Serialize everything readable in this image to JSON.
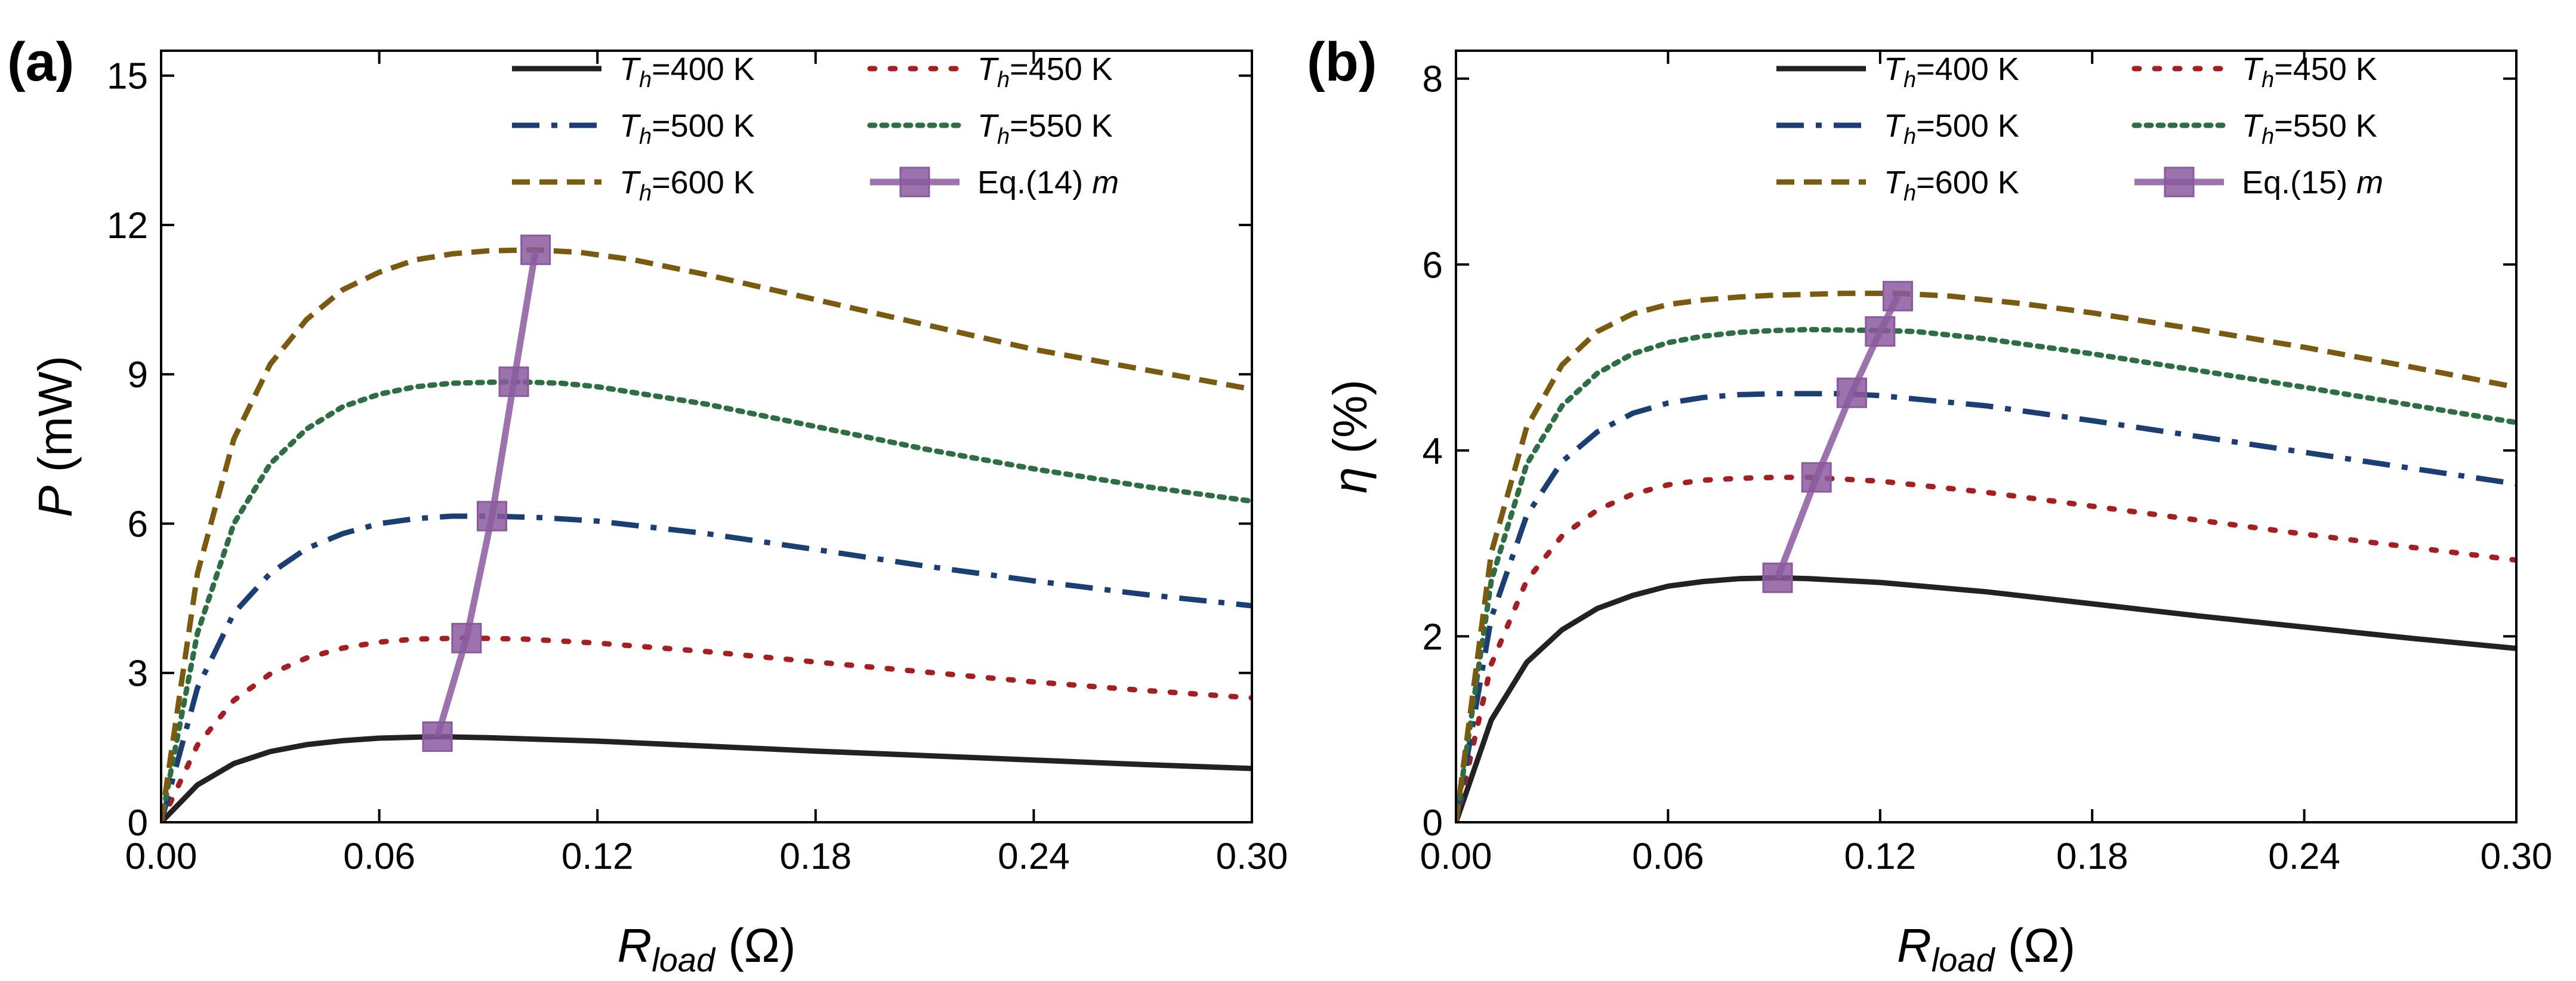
{
  "chart_data": [
    {
      "type": "line",
      "panel_label": "(a)",
      "xlabel": {
        "main": "R",
        "sub": "load",
        "unit": "(Ω)"
      },
      "ylabel": {
        "main": "P",
        "unit": "(mW)"
      },
      "xlim": [
        0,
        0.3
      ],
      "ylim": [
        0,
        15.5
      ],
      "xticks": [
        0,
        0.06,
        0.12,
        0.18,
        0.24,
        0.3
      ],
      "xtick_labels": [
        "0.00",
        "0.06",
        "0.12",
        "0.18",
        "0.24",
        "0.30"
      ],
      "yticks": [
        0,
        3,
        6,
        9,
        12,
        15
      ],
      "ytick_labels": [
        "0",
        "3",
        "6",
        "9",
        "12",
        "15"
      ],
      "legend_position": "top-right",
      "series": [
        {
          "name": "Th=400 K",
          "name_main": "T",
          "name_sub": "h",
          "name_rest": "=400 K",
          "style": "solid",
          "color": "#222222",
          "x": [
            0,
            0.01,
            0.02,
            0.03,
            0.04,
            0.05,
            0.06,
            0.07,
            0.076,
            0.09,
            0.12,
            0.15,
            0.18,
            0.21,
            0.24,
            0.27,
            0.3
          ],
          "y": [
            0,
            0.75,
            1.18,
            1.42,
            1.56,
            1.64,
            1.69,
            1.71,
            1.72,
            1.7,
            1.63,
            1.53,
            1.43,
            1.34,
            1.25,
            1.16,
            1.08
          ]
        },
        {
          "name": "Th=450 K",
          "name_main": "T",
          "name_sub": "h",
          "name_rest": "=450 K",
          "style": "dot",
          "color": "#a31f22",
          "x": [
            0,
            0.01,
            0.02,
            0.03,
            0.04,
            0.05,
            0.06,
            0.07,
            0.084,
            0.1,
            0.12,
            0.15,
            0.18,
            0.21,
            0.24,
            0.27,
            0.3
          ],
          "y": [
            0,
            1.55,
            2.45,
            2.98,
            3.3,
            3.5,
            3.62,
            3.68,
            3.7,
            3.68,
            3.6,
            3.43,
            3.22,
            3.02,
            2.82,
            2.65,
            2.5
          ]
        },
        {
          "name": "Th=500 K",
          "name_main": "T",
          "name_sub": "h",
          "name_rest": "=500 K",
          "style": "dashdot",
          "color": "#1c3f73",
          "x": [
            0,
            0.01,
            0.02,
            0.03,
            0.04,
            0.05,
            0.06,
            0.07,
            0.08,
            0.091,
            0.105,
            0.12,
            0.15,
            0.18,
            0.21,
            0.24,
            0.27,
            0.3
          ],
          "y": [
            0,
            2.7,
            4.2,
            5.0,
            5.5,
            5.8,
            6.0,
            6.1,
            6.15,
            6.15,
            6.12,
            6.05,
            5.8,
            5.48,
            5.15,
            4.85,
            4.58,
            4.35
          ]
        },
        {
          "name": "Th=550 K",
          "name_main": "T",
          "name_sub": "h",
          "name_rest": "=550 K",
          "style": "densedot",
          "color": "#2f6e45",
          "x": [
            0,
            0.01,
            0.02,
            0.03,
            0.04,
            0.05,
            0.06,
            0.07,
            0.08,
            0.097,
            0.11,
            0.12,
            0.15,
            0.18,
            0.21,
            0.24,
            0.27,
            0.3
          ],
          "y": [
            0,
            3.8,
            6.0,
            7.2,
            7.9,
            8.35,
            8.6,
            8.75,
            8.82,
            8.85,
            8.82,
            8.75,
            8.4,
            7.95,
            7.5,
            7.1,
            6.75,
            6.45
          ]
        },
        {
          "name": "Th=600 K",
          "name_main": "T",
          "name_sub": "h",
          "name_rest": "=600 K",
          "style": "dash",
          "color": "#7a5a10",
          "x": [
            0,
            0.01,
            0.02,
            0.03,
            0.04,
            0.05,
            0.06,
            0.07,
            0.08,
            0.09,
            0.103,
            0.115,
            0.13,
            0.15,
            0.18,
            0.21,
            0.24,
            0.27,
            0.3
          ],
          "y": [
            0,
            5.0,
            7.7,
            9.2,
            10.1,
            10.7,
            11.05,
            11.3,
            11.42,
            11.48,
            11.5,
            11.45,
            11.3,
            11.0,
            10.5,
            10.0,
            9.5,
            9.1,
            8.7
          ]
        },
        {
          "name": "Eq.(14) m",
          "name_main": "Eq.(14) ",
          "name_sub": "",
          "name_rest": "m",
          "style": "marker-line",
          "color": "#8b5a9e",
          "x": [
            0.076,
            0.084,
            0.091,
            0.097,
            0.103
          ],
          "y": [
            1.72,
            3.7,
            6.15,
            8.85,
            11.5
          ]
        }
      ]
    },
    {
      "type": "line",
      "panel_label": "(b)",
      "xlabel": {
        "main": "R",
        "sub": "load",
        "unit": "(Ω)"
      },
      "ylabel": {
        "main": "η",
        "unit": "(%)"
      },
      "xlim": [
        0,
        0.3
      ],
      "ylim": [
        0,
        8.3
      ],
      "xticks": [
        0,
        0.06,
        0.12,
        0.18,
        0.24,
        0.3
      ],
      "xtick_labels": [
        "0.00",
        "0.06",
        "0.12",
        "0.18",
        "0.24",
        "0.30"
      ],
      "yticks": [
        0,
        2,
        4,
        6,
        8
      ],
      "ytick_labels": [
        "0",
        "2",
        "4",
        "6",
        "8"
      ],
      "legend_position": "top-right",
      "series": [
        {
          "name": "Th=400 K",
          "name_main": "T",
          "name_sub": "h",
          "name_rest": "=400 K",
          "style": "solid",
          "color": "#222222",
          "x": [
            0,
            0.01,
            0.02,
            0.03,
            0.04,
            0.05,
            0.06,
            0.07,
            0.08,
            0.091,
            0.1,
            0.12,
            0.15,
            0.18,
            0.21,
            0.24,
            0.27,
            0.3
          ],
          "y": [
            0,
            1.1,
            1.72,
            2.07,
            2.3,
            2.44,
            2.54,
            2.59,
            2.62,
            2.63,
            2.62,
            2.58,
            2.48,
            2.35,
            2.22,
            2.1,
            1.98,
            1.87
          ]
        },
        {
          "name": "Th=450 K",
          "name_main": "T",
          "name_sub": "h",
          "name_rest": "=450 K",
          "style": "dot",
          "color": "#a31f22",
          "x": [
            0,
            0.01,
            0.02,
            0.03,
            0.04,
            0.05,
            0.06,
            0.07,
            0.08,
            0.09,
            0.1,
            0.12,
            0.15,
            0.18,
            0.21,
            0.24,
            0.27,
            0.3
          ],
          "y": [
            0,
            1.7,
            2.6,
            3.08,
            3.36,
            3.53,
            3.63,
            3.68,
            3.7,
            3.71,
            3.71,
            3.67,
            3.55,
            3.4,
            3.25,
            3.1,
            2.96,
            2.82
          ]
        },
        {
          "name": "Th=500 K",
          "name_main": "T",
          "name_sub": "h",
          "name_rest": "=500 K",
          "style": "dashdot",
          "color": "#1c3f73",
          "x": [
            0,
            0.01,
            0.02,
            0.03,
            0.04,
            0.05,
            0.06,
            0.07,
            0.08,
            0.09,
            0.1,
            0.11,
            0.12,
            0.15,
            0.18,
            0.21,
            0.24,
            0.27,
            0.3
          ],
          "y": [
            0,
            2.2,
            3.3,
            3.88,
            4.2,
            4.4,
            4.51,
            4.57,
            4.6,
            4.61,
            4.61,
            4.61,
            4.59,
            4.48,
            4.32,
            4.15,
            3.98,
            3.81,
            3.64
          ]
        },
        {
          "name": "Th=550 K",
          "name_main": "T",
          "name_sub": "h",
          "name_rest": "=550 K",
          "style": "densedot",
          "color": "#2f6e45",
          "x": [
            0,
            0.01,
            0.02,
            0.03,
            0.04,
            0.05,
            0.06,
            0.07,
            0.08,
            0.09,
            0.1,
            0.12,
            0.13,
            0.15,
            0.18,
            0.21,
            0.24,
            0.27,
            0.3
          ],
          "y": [
            0,
            2.6,
            3.85,
            4.48,
            4.83,
            5.04,
            5.16,
            5.23,
            5.27,
            5.29,
            5.3,
            5.29,
            5.28,
            5.2,
            5.04,
            4.86,
            4.68,
            4.49,
            4.3
          ]
        },
        {
          "name": "Th=600 K",
          "name_main": "T",
          "name_sub": "h",
          "name_rest": "=600 K",
          "style": "dash",
          "color": "#7a5a10",
          "x": [
            0,
            0.01,
            0.02,
            0.03,
            0.04,
            0.05,
            0.06,
            0.07,
            0.08,
            0.09,
            0.1,
            0.11,
            0.125,
            0.14,
            0.16,
            0.18,
            0.21,
            0.24,
            0.27,
            0.3
          ],
          "y": [
            0,
            2.9,
            4.25,
            4.92,
            5.28,
            5.47,
            5.57,
            5.62,
            5.65,
            5.67,
            5.68,
            5.69,
            5.69,
            5.66,
            5.58,
            5.48,
            5.3,
            5.11,
            4.9,
            4.68
          ]
        },
        {
          "name": "Eq.(15) m",
          "name_main": "Eq.(15) ",
          "name_sub": "",
          "name_rest": "m",
          "style": "marker-line",
          "color": "#8b5a9e",
          "x": [
            0.091,
            0.102,
            0.112,
            0.12,
            0.125
          ],
          "y": [
            2.63,
            3.71,
            4.62,
            5.28,
            5.66
          ]
        }
      ]
    }
  ]
}
